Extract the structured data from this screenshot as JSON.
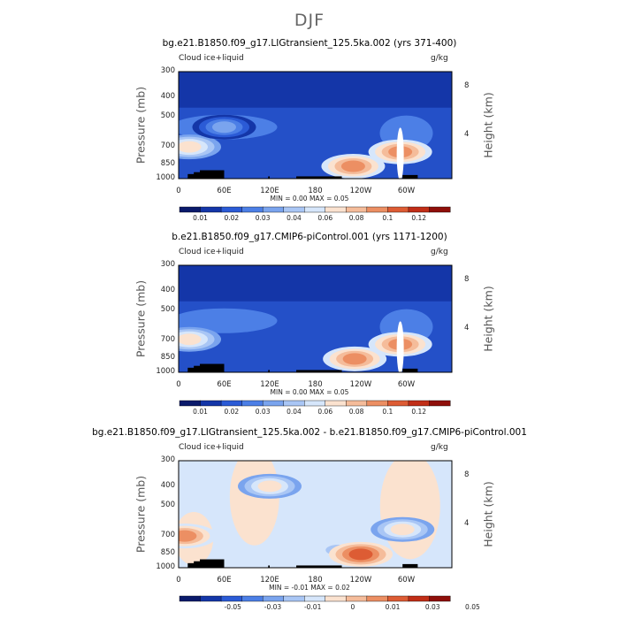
{
  "title": "DJF",
  "chart_data": [
    {
      "type": "heatmap",
      "title": "bg.e21.B1850.f09_g17.LIGtransient_125.5ka.002 (yrs 371-400)",
      "left_string": "Cloud ice+liquid",
      "units": "g/kg",
      "ylabel": "Pressure (mb)",
      "y2label": "Height (km)",
      "xticks": [
        "0",
        "60E",
        "120E",
        "180",
        "120W",
        "60W"
      ],
      "yticks": [
        "300",
        "400",
        "500",
        "700",
        "850",
        "1000"
      ],
      "y2ticks": [
        "8",
        "4"
      ],
      "stats_text": "MIN =     0.00   MAX =     0.05",
      "min": 0.0,
      "max": 0.05,
      "colorbar_labels": [
        "0.01",
        "0.02",
        "0.03",
        "0.04",
        "0.06",
        "0.08",
        "0.1",
        "0.12"
      ],
      "colors": [
        "#0a1a6b",
        "#1436a8",
        "#2b5bd6",
        "#4c7fe6",
        "#7aa4ee",
        "#a9c6f5",
        "#d6e6fb",
        "#fbe2cf",
        "#f5bc9a",
        "#ec8f63",
        "#dd5c34",
        "#c12e17",
        "#8f0f0a"
      ],
      "features": [
        {
          "lon": 14,
          "p": 700,
          "level": 6
        },
        {
          "lon": 230,
          "p": 870,
          "level": 8
        },
        {
          "lon": 292,
          "p": 740,
          "level": 8
        },
        {
          "lon": 60,
          "p": 560,
          "level": 3
        }
      ]
    },
    {
      "type": "heatmap",
      "title": "b.e21.B1850.f09_g17.CMIP6-piControl.001 (yrs 1171-1200)",
      "left_string": "Cloud ice+liquid",
      "units": "g/kg",
      "ylabel": "Pressure (mb)",
      "y2label": "Height (km)",
      "xticks": [
        "0",
        "60E",
        "120E",
        "180",
        "120W",
        "60W"
      ],
      "yticks": [
        "300",
        "400",
        "500",
        "700",
        "850",
        "1000"
      ],
      "y2ticks": [
        "8",
        "4"
      ],
      "stats_text": "MIN =     0.00   MAX =     0.05",
      "min": 0.0,
      "max": 0.05,
      "colorbar_labels": [
        "0.01",
        "0.02",
        "0.03",
        "0.04",
        "0.06",
        "0.08",
        "0.1",
        "0.12"
      ],
      "colors": [
        "#0a1a6b",
        "#1436a8",
        "#2b5bd6",
        "#4c7fe6",
        "#7aa4ee",
        "#a9c6f5",
        "#d6e6fb",
        "#fbe2cf",
        "#f5bc9a",
        "#ec8f63",
        "#dd5c34",
        "#c12e17",
        "#8f0f0a"
      ],
      "features": [
        {
          "lon": 14,
          "p": 690,
          "level": 6
        },
        {
          "lon": 232,
          "p": 860,
          "level": 8
        },
        {
          "lon": 292,
          "p": 730,
          "level": 8
        }
      ]
    },
    {
      "type": "heatmap",
      "title": "bg.e21.B1850.f09_g17.LIGtransient_125.5ka.002 - b.e21.B1850.f09_g17.CMIP6-piControl.001",
      "left_string": "Cloud ice+liquid",
      "units": "g/kg",
      "ylabel": "Pressure (mb)",
      "y2label": "Height (km)",
      "xticks": [
        "0",
        "60E",
        "120E",
        "180",
        "120W",
        "60W"
      ],
      "yticks": [
        "300",
        "400",
        "500",
        "700",
        "850",
        "1000"
      ],
      "y2ticks": [
        "8",
        "4"
      ],
      "stats_text": "MIN =    -0.01   MAX =     0.02",
      "min": -0.01,
      "max": 0.02,
      "colorbar_labels": [
        "-0.05",
        "-0.03",
        "-0.01",
        "0",
        "0.01",
        "0.03",
        "0.05"
      ],
      "colors": [
        "#0a1a6b",
        "#1436a8",
        "#2b5bd6",
        "#4c7fe6",
        "#7aa4ee",
        "#a9c6f5",
        "#d6e6fb",
        "#fbe2cf",
        "#f5bc9a",
        "#ec8f63",
        "#dd5c34",
        "#c12e17",
        "#8f0f0a"
      ],
      "features": [
        {
          "lon": 8,
          "p": 700,
          "level": 9
        },
        {
          "lon": 240,
          "p": 860,
          "level": 10
        },
        {
          "lon": 120,
          "p": 400,
          "level": 7
        },
        {
          "lon": 295,
          "p": 650,
          "level": 7
        }
      ]
    }
  ]
}
